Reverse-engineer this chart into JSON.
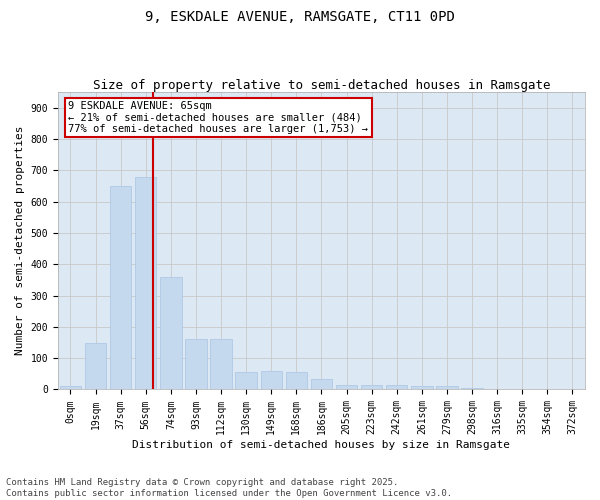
{
  "title": "9, ESKDALE AVENUE, RAMSGATE, CT11 0PD",
  "subtitle": "Size of property relative to semi-detached houses in Ramsgate",
  "xlabel": "Distribution of semi-detached houses by size in Ramsgate",
  "ylabel": "Number of semi-detached properties",
  "categories": [
    "0sqm",
    "19sqm",
    "37sqm",
    "56sqm",
    "74sqm",
    "93sqm",
    "112sqm",
    "130sqm",
    "149sqm",
    "168sqm",
    "186sqm",
    "205sqm",
    "223sqm",
    "242sqm",
    "261sqm",
    "279sqm",
    "298sqm",
    "316sqm",
    "335sqm",
    "354sqm",
    "372sqm"
  ],
  "values": [
    10,
    150,
    650,
    680,
    360,
    160,
    160,
    55,
    60,
    55,
    35,
    15,
    15,
    15,
    12,
    10,
    5,
    2,
    1,
    0,
    0
  ],
  "bar_color": "#c5d9ee",
  "bar_edge_color": "#a8c4e0",
  "vline_color": "#cc0000",
  "vline_x": 3.3,
  "annotation_text": "9 ESKDALE AVENUE: 65sqm\n← 21% of semi-detached houses are smaller (484)\n77% of semi-detached houses are larger (1,753) →",
  "annotation_box_color": "#ffffff",
  "annotation_box_edge": "#cc0000",
  "ylim": [
    0,
    950
  ],
  "yticks": [
    0,
    100,
    200,
    300,
    400,
    500,
    600,
    700,
    800,
    900
  ],
  "grid_color": "#c8c8c8",
  "bg_color": "#dce9f5",
  "fig_bg_color": "#ffffff",
  "footnote": "Contains HM Land Registry data © Crown copyright and database right 2025.\nContains public sector information licensed under the Open Government Licence v3.0.",
  "title_fontsize": 10,
  "subtitle_fontsize": 9,
  "label_fontsize": 8,
  "tick_fontsize": 7,
  "annot_fontsize": 7.5,
  "footnote_fontsize": 6.5
}
